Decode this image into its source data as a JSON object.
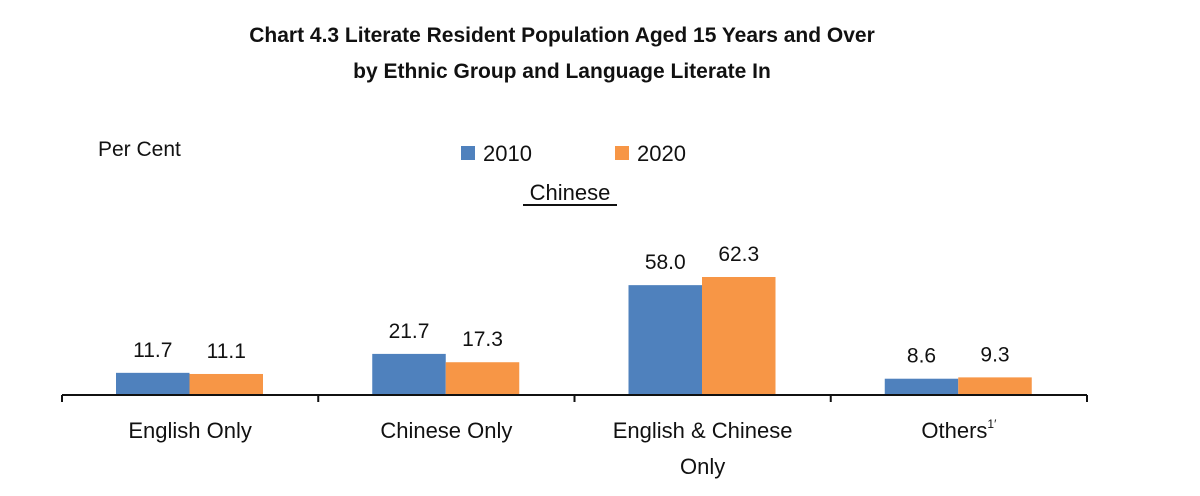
{
  "chart_data": {
    "type": "bar",
    "title_line1": "Chart 4.3  Literate Resident Population Aged 15 Years and Over",
    "title_line2": "by Ethnic Group and Language Literate In",
    "ylabel": "Per Cent",
    "subtitle": "Chinese",
    "categories": [
      [
        "English Only"
      ],
      [
        "Chinese Only"
      ],
      [
        "English & Chinese",
        "Only"
      ],
      [
        "Others1/"
      ]
    ],
    "series": [
      {
        "name": "2010",
        "color": "#4f81bd",
        "values": [
          11.7,
          21.7,
          58.0,
          8.6
        ]
      },
      {
        "name": "2020",
        "color": "#f79646",
        "values": [
          11.1,
          17.3,
          62.3,
          9.3
        ]
      }
    ],
    "ylim": [
      0,
      70
    ],
    "grid": false,
    "legend": "top-center"
  }
}
